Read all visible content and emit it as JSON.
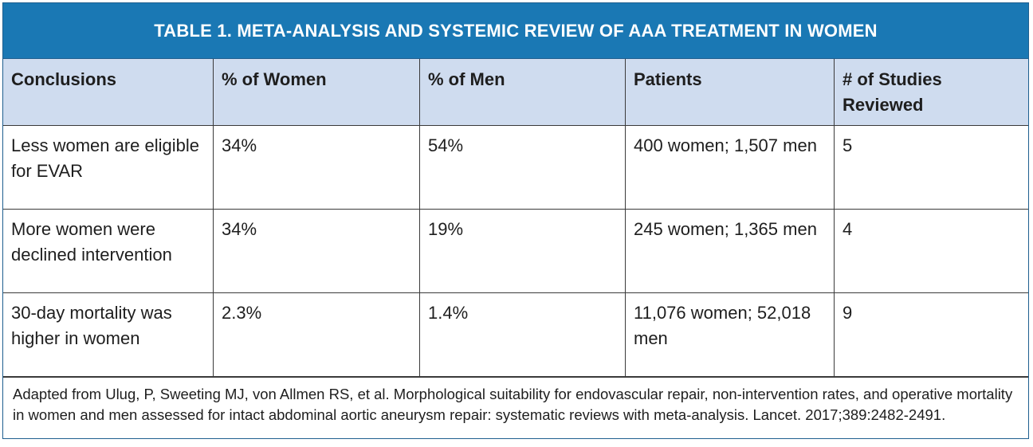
{
  "title": "TABLE 1.  META-ANALYSIS AND SYSTEMIC REVIEW OF AAA TREATMENT IN WOMEN",
  "columns": [
    "Conclusions",
    "% of Women",
    "% of Men",
    "Patients",
    "# of Studies Reviewed"
  ],
  "rows": [
    [
      "Less women are eligible for EVAR",
      "34%",
      "54%",
      "400 women; 1,507 men",
      "5"
    ],
    [
      "More women were declined intervention",
      "34%",
      "19%",
      "245 women; 1,365 men",
      "4"
    ],
    [
      "30-day mortality was higher in women",
      "2.3%",
      "1.4%",
      "11,076 women; 52,018 men",
      "9"
    ]
  ],
  "footnote": "Adapted from Ulug, P, Sweeting MJ, von Allmen RS, et al. Morphological suitability for endovascular repair, non-intervention rates, and operative mortality in women and men assessed for intact abdominal aortic aneurysm repair: systematic reviews with meta-analysis. Lancet. 2017;389:2482-2491.",
  "colors": {
    "title_bg": "#1a78b4",
    "header_bg": "#cfdcef"
  }
}
